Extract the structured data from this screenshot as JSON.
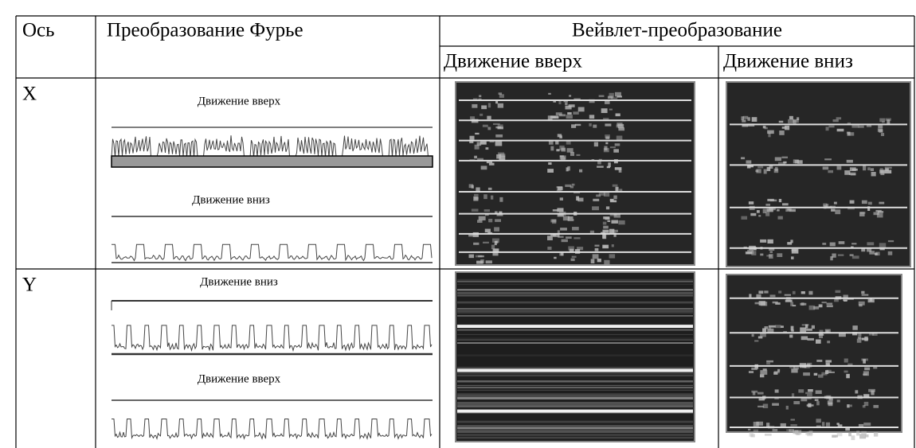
{
  "table": {
    "header": [
      "Ось",
      "Преобразование Фурье",
      "Вейвлет-преобразование"
    ],
    "subheader": [
      "Движение вверх",
      "Движение вниз"
    ],
    "rows": [
      {
        "axis": "X",
        "fourier_labels": [
          "Движение вверх",
          "Движение вниз"
        ]
      },
      {
        "axis": "Y",
        "fourier_labels": [
          "Движение вниз",
          "Движение вверх"
        ]
      }
    ]
  }
}
